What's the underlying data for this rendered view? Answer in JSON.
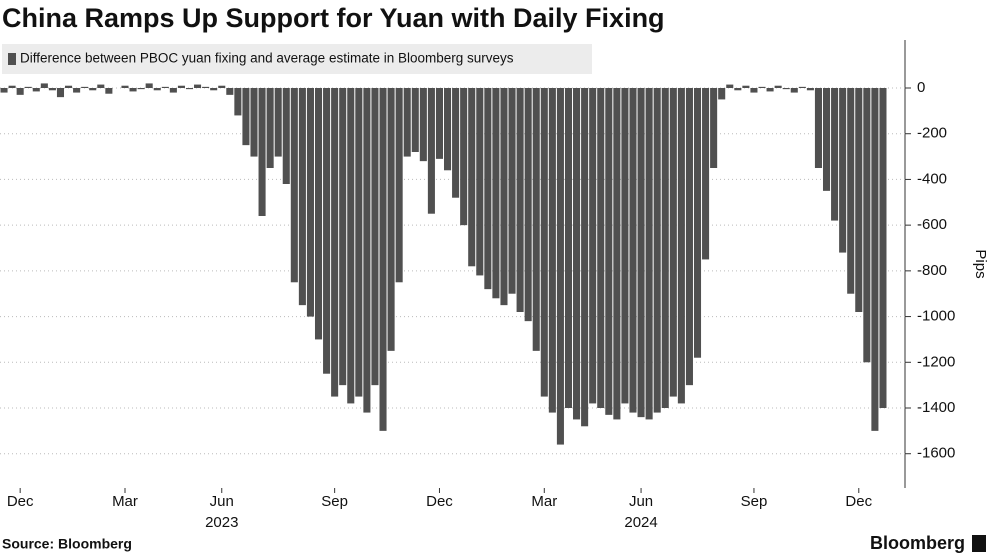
{
  "chart_data": {
    "type": "bar",
    "title": "China Ramps Up Support for Yuan with Daily Fixing",
    "legend_label": "Difference between PBOC yuan fixing and average estimate in Bloomberg surveys",
    "y_label": "Pips",
    "source": "Source: Bloomberg",
    "brand": "Bloomberg",
    "color": "#505050",
    "grid": true,
    "ylim": [
      -1750,
      210
    ],
    "yticks": [
      0,
      -200,
      -400,
      -600,
      -800,
      -1000,
      -1200,
      -1400,
      -1600
    ],
    "categories": [
      null,
      null,
      "Dec",
      null,
      null,
      null,
      null,
      null,
      null,
      null,
      null,
      null,
      null,
      null,
      null,
      "Mar",
      null,
      null,
      null,
      null,
      null,
      null,
      null,
      null,
      null,
      null,
      null,
      "Jun",
      null,
      null,
      null,
      null,
      null,
      null,
      null,
      null,
      null,
      null,
      null,
      null,
      null,
      "Sep",
      null,
      null,
      null,
      null,
      null,
      null,
      null,
      null,
      null,
      null,
      null,
      null,
      "Dec",
      null,
      null,
      null,
      null,
      null,
      null,
      null,
      null,
      null,
      null,
      null,
      null,
      "Mar",
      null,
      null,
      null,
      null,
      null,
      null,
      null,
      null,
      null,
      null,
      null,
      "Jun",
      null,
      null,
      null,
      null,
      null,
      null,
      null,
      null,
      null,
      null,
      null,
      null,
      null,
      "Sep",
      null,
      null,
      null,
      null,
      null,
      null,
      null,
      null,
      null,
      null,
      null,
      null,
      "Dec",
      null,
      null,
      null
    ],
    "year_labels": [
      null,
      null,
      null,
      null,
      null,
      null,
      null,
      null,
      null,
      null,
      null,
      null,
      null,
      null,
      null,
      null,
      null,
      null,
      null,
      null,
      null,
      null,
      null,
      null,
      null,
      null,
      null,
      "2023",
      null,
      null,
      null,
      null,
      null,
      null,
      null,
      null,
      null,
      null,
      null,
      null,
      null,
      null,
      null,
      null,
      null,
      null,
      null,
      null,
      null,
      null,
      null,
      null,
      null,
      null,
      null,
      null,
      null,
      null,
      null,
      null,
      null,
      null,
      null,
      null,
      null,
      null,
      null,
      null,
      null,
      null,
      null,
      null,
      null,
      null,
      null,
      null,
      null,
      null,
      null,
      "2024",
      null,
      null,
      null,
      null,
      null,
      null,
      null,
      null,
      null,
      null,
      null,
      null,
      null,
      null,
      null,
      null,
      null,
      null,
      null,
      null,
      null,
      null,
      null,
      null,
      null,
      null,
      null,
      null,
      null,
      null
    ],
    "values": [
      -20,
      10,
      -30,
      5,
      -15,
      20,
      -10,
      -40,
      10,
      -20,
      5,
      -10,
      15,
      -25,
      0,
      10,
      -15,
      -5,
      20,
      -10,
      5,
      -20,
      10,
      -5,
      15,
      5,
      -10,
      10,
      -30,
      -120,
      -250,
      -300,
      -560,
      -350,
      -300,
      -420,
      -850,
      -950,
      -1000,
      -1100,
      -1250,
      -1350,
      -1300,
      -1380,
      -1350,
      -1420,
      -1300,
      -1500,
      -1150,
      -850,
      -300,
      -280,
      -320,
      -550,
      -310,
      -360,
      -480,
      -600,
      -780,
      -820,
      -880,
      -920,
      -950,
      -900,
      -980,
      -1020,
      -1150,
      -1350,
      -1420,
      -1560,
      -1400,
      -1450,
      -1480,
      -1380,
      -1400,
      -1430,
      -1450,
      -1380,
      -1420,
      -1440,
      -1450,
      -1420,
      -1400,
      -1350,
      -1380,
      -1300,
      -1180,
      -750,
      -350,
      -50,
      15,
      -10,
      10,
      -20,
      5,
      -15,
      10,
      -5,
      -20,
      5,
      -10,
      -350,
      -450,
      -580,
      -720,
      -900,
      -980,
      -1200,
      -1500,
      -1400
    ]
  }
}
